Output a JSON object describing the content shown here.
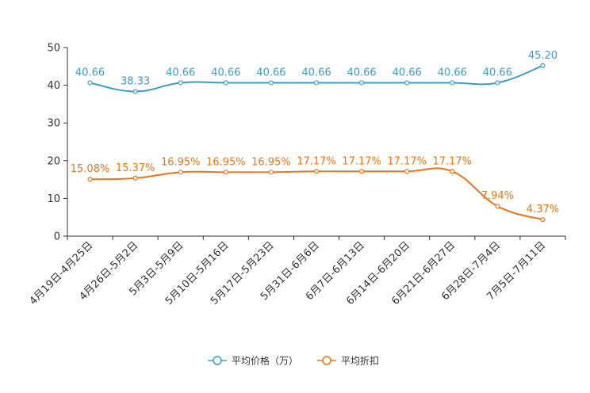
{
  "chart_data": {
    "type": "line",
    "title": "",
    "xlabel": "",
    "ylabel": "",
    "ylim": [
      0,
      50
    ],
    "yticks": [
      0,
      10,
      20,
      30,
      40,
      50
    ],
    "grid": false,
    "legend_position": "bottom-center",
    "categories": [
      "4月19日-4月25日",
      "4月26日-5月2日",
      "5月3日-5月9日",
      "5月10日-5月16日",
      "5月17日-5月23日",
      "5月31日-6月6日",
      "6月7日-6月13日",
      "6月14日-6月20日",
      "6月21日-6月27日",
      "6月28日-7月4日",
      "7月5日-7月11日"
    ],
    "series": [
      {
        "name": "平均价格（万）",
        "color": "#3c9dc9",
        "values": [
          40.66,
          38.33,
          40.66,
          40.66,
          40.66,
          40.66,
          40.66,
          40.66,
          40.66,
          40.66,
          45.2
        ],
        "labels": [
          "40.66",
          "38.33",
          "40.66",
          "40.66",
          "40.66",
          "40.66",
          "40.66",
          "40.66",
          "40.66",
          "40.66",
          "45.20"
        ]
      },
      {
        "name": "平均折扣",
        "color": "#f07314",
        "values": [
          15.08,
          15.37,
          16.95,
          16.95,
          16.95,
          17.17,
          17.17,
          17.17,
          17.17,
          7.94,
          4.37
        ],
        "labels": [
          "15.08%",
          "15.37%",
          "16.95%",
          "16.95%",
          "16.95%",
          "17.17%",
          "17.17%",
          "17.17%",
          "17.17%",
          "7.94%",
          "4.37%"
        ]
      }
    ]
  }
}
